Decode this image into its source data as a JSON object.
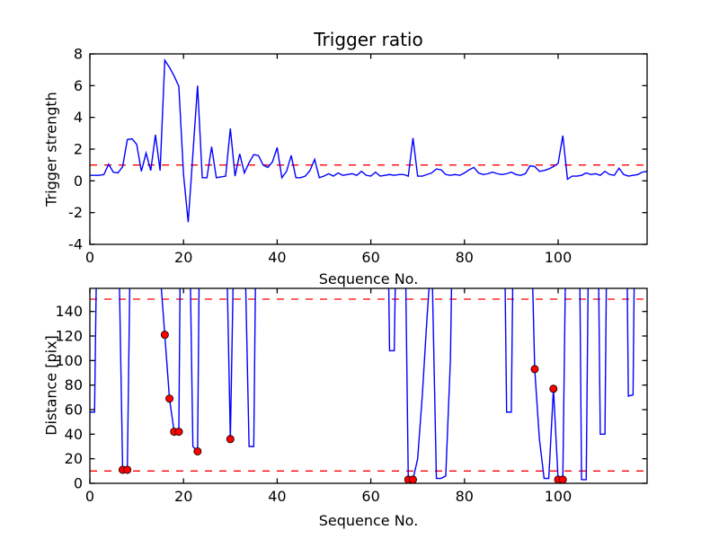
{
  "figure": {
    "title": "Trigger ratio",
    "background": "#ffffff"
  },
  "colors": {
    "line": "#0000ff",
    "threshold": "#ff0000",
    "marker_fill": "#ff0000",
    "marker_edge": "#000000",
    "axis": "#000000",
    "text": "#000000"
  },
  "chart_data": [
    {
      "type": "line",
      "title": "Trigger ratio",
      "xlabel": "Sequence No.",
      "ylabel": "Trigger strength",
      "xlim": [
        0,
        119
      ],
      "ylim": [
        -4,
        8
      ],
      "xticks": [
        0,
        20,
        40,
        60,
        80,
        100
      ],
      "yticks": [
        -4,
        -2,
        0,
        2,
        4,
        6,
        8
      ],
      "grid": false,
      "legend": "none",
      "threshold_lines": [
        1.0
      ],
      "y_values": [
        0.35,
        0.35,
        0.35,
        0.4,
        1.05,
        0.55,
        0.5,
        0.9,
        2.6,
        2.65,
        2.3,
        0.6,
        1.75,
        0.65,
        2.9,
        0.65,
        7.6,
        7.15,
        6.6,
        5.95,
        0.4,
        -2.6,
        1.7,
        6.0,
        0.2,
        0.2,
        2.15,
        0.2,
        0.25,
        0.3,
        3.3,
        0.3,
        1.7,
        0.5,
        1.15,
        1.65,
        1.6,
        1.0,
        0.85,
        1.2,
        2.1,
        0.2,
        0.6,
        1.6,
        0.2,
        0.2,
        0.3,
        0.65,
        1.35,
        0.2,
        0.3,
        0.45,
        0.3,
        0.5,
        0.35,
        0.4,
        0.45,
        0.35,
        0.6,
        0.35,
        0.3,
        0.55,
        0.3,
        0.35,
        0.4,
        0.35,
        0.4,
        0.4,
        0.3,
        2.7,
        0.3,
        0.3,
        0.4,
        0.5,
        0.75,
        0.7,
        0.4,
        0.35,
        0.4,
        0.35,
        0.5,
        0.7,
        0.85,
        0.5,
        0.4,
        0.45,
        0.55,
        0.45,
        0.4,
        0.45,
        0.55,
        0.4,
        0.35,
        0.45,
        0.95,
        0.9,
        0.6,
        0.65,
        0.75,
        0.9,
        1.1,
        2.85,
        0.1,
        0.3,
        0.3,
        0.35,
        0.5,
        0.4,
        0.45,
        0.35,
        0.6,
        0.4,
        0.35,
        0.8,
        0.4,
        0.3,
        0.35,
        0.4,
        0.55,
        0.6
      ],
      "markers": []
    },
    {
      "type": "line",
      "title": "",
      "xlabel": "Sequence No.",
      "ylabel": "Distance [pix]",
      "xlim": [
        0,
        119
      ],
      "ylim": [
        0,
        158.8
      ],
      "xticks": [
        0,
        20,
        40,
        60,
        80,
        100
      ],
      "yticks": [
        0,
        20,
        40,
        60,
        80,
        100,
        120,
        140
      ],
      "grid": false,
      "legend": "none",
      "threshold_lines": [
        10,
        150
      ],
      "y_values": [
        58,
        58,
        350,
        450,
        400,
        420,
        230,
        11,
        11,
        300,
        400,
        380,
        420,
        360,
        300,
        172,
        121,
        69,
        42,
        42,
        500,
        280,
        30,
        26,
        450,
        400,
        480,
        420,
        300,
        230,
        36,
        250,
        400,
        210,
        30,
        30,
        400,
        450,
        400,
        420,
        380,
        400,
        450,
        400,
        420,
        400,
        380,
        420,
        400,
        450,
        400,
        420,
        380,
        400,
        420,
        400,
        450,
        400,
        380,
        420,
        400,
        400,
        420,
        400,
        108,
        108,
        350,
        300,
        3,
        3,
        20,
        72,
        135,
        190,
        4,
        4,
        6,
        101,
        350,
        400,
        420,
        400,
        380,
        400,
        420,
        400,
        450,
        400,
        380,
        58,
        58,
        400,
        420,
        400,
        250,
        93,
        36,
        4,
        4,
        77,
        3,
        3,
        300,
        500,
        450,
        3,
        3,
        400,
        400,
        40,
        40,
        450,
        400,
        420,
        450,
        71,
        72,
        450,
        420,
        400
      ],
      "markers": [
        [
          7,
          11
        ],
        [
          8,
          11
        ],
        [
          16,
          121
        ],
        [
          17,
          69
        ],
        [
          18,
          42
        ],
        [
          19,
          42
        ],
        [
          23,
          26
        ],
        [
          30,
          36
        ],
        [
          68,
          3
        ],
        [
          69,
          3
        ],
        [
          95,
          93
        ],
        [
          99,
          77
        ],
        [
          100,
          3
        ],
        [
          101,
          3
        ]
      ]
    }
  ]
}
